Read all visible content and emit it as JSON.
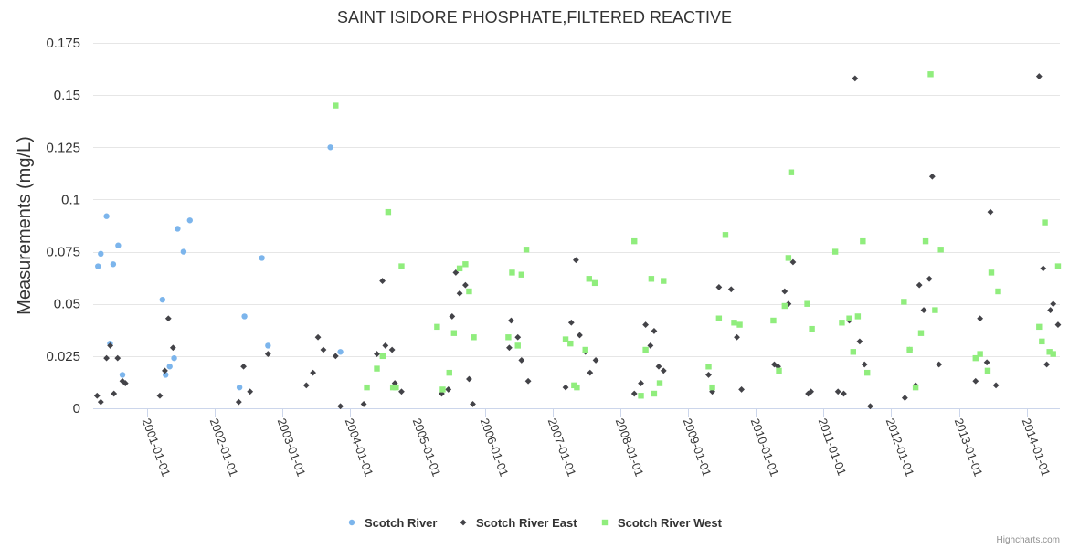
{
  "chart_data": {
    "type": "scatter",
    "title": "SAINT ISIDORE PHOSPHATE,FILTERED REACTIVE",
    "ylabel": "Measurements (mg/L)",
    "xlabel": "",
    "x_axis_type": "datetime",
    "xlim": [
      "2000-03-15",
      "2014-06-30"
    ],
    "ylim": [
      0,
      0.175
    ],
    "yticks": [
      {
        "value": 0,
        "label": "0"
      },
      {
        "value": 0.025,
        "label": "0.025"
      },
      {
        "value": 0.05,
        "label": "0.05"
      },
      {
        "value": 0.075,
        "label": "0.075"
      },
      {
        "value": 0.1,
        "label": "0.1"
      },
      {
        "value": 0.125,
        "label": "0.125"
      },
      {
        "value": 0.15,
        "label": "0.15"
      },
      {
        "value": 0.175,
        "label": "0.175"
      }
    ],
    "xticks": [
      "2001-01-01",
      "2002-01-01",
      "2003-01-01",
      "2004-01-01",
      "2005-01-01",
      "2006-01-01",
      "2007-01-01",
      "2008-01-01",
      "2009-01-01",
      "2010-01-01",
      "2011-01-01",
      "2012-01-01",
      "2013-01-01",
      "2014-01-01"
    ],
    "grid": true,
    "legend_position": "bottom-center",
    "series": [
      {
        "name": "Scotch River",
        "color": "#7cb5ec",
        "marker": "circle",
        "points": [
          [
            "2000-04-10",
            0.068
          ],
          [
            "2000-04-25",
            0.074
          ],
          [
            "2000-05-26",
            0.092
          ],
          [
            "2000-06-14",
            0.031
          ],
          [
            "2000-07-01",
            0.069
          ],
          [
            "2000-07-28",
            0.078
          ],
          [
            "2000-08-20",
            0.016
          ],
          [
            "2001-03-24",
            0.052
          ],
          [
            "2001-04-10",
            0.016
          ],
          [
            "2001-05-02",
            0.02
          ],
          [
            "2001-05-26",
            0.024
          ],
          [
            "2001-06-14",
            0.086
          ],
          [
            "2001-07-16",
            0.075
          ],
          [
            "2001-08-19",
            0.09
          ],
          [
            "2002-05-14",
            0.01
          ],
          [
            "2002-06-10",
            0.044
          ],
          [
            "2002-09-12",
            0.072
          ],
          [
            "2002-10-15",
            0.03
          ],
          [
            "2003-09-17",
            0.125
          ],
          [
            "2003-11-10",
            0.027
          ]
        ]
      },
      {
        "name": "Scotch River East",
        "color": "#434348",
        "marker": "diamond",
        "points": [
          [
            "2000-04-05",
            0.006
          ],
          [
            "2000-04-25",
            0.003
          ],
          [
            "2000-05-26",
            0.024
          ],
          [
            "2000-06-15",
            0.03
          ],
          [
            "2000-07-05",
            0.007
          ],
          [
            "2000-07-25",
            0.024
          ],
          [
            "2000-08-20",
            0.013
          ],
          [
            "2000-09-05",
            0.012
          ],
          [
            "2001-03-10",
            0.006
          ],
          [
            "2001-04-06",
            0.018
          ],
          [
            "2001-04-25",
            0.043
          ],
          [
            "2001-05-20",
            0.029
          ],
          [
            "2002-05-10",
            0.003
          ],
          [
            "2002-06-05",
            0.02
          ],
          [
            "2002-07-10",
            0.008
          ],
          [
            "2002-10-15",
            0.026
          ],
          [
            "2003-05-10",
            0.011
          ],
          [
            "2003-06-15",
            0.017
          ],
          [
            "2003-07-12",
            0.034
          ],
          [
            "2003-08-10",
            0.028
          ],
          [
            "2003-10-15",
            0.025
          ],
          [
            "2003-11-10",
            0.001
          ],
          [
            "2004-03-15",
            0.002
          ],
          [
            "2004-05-25",
            0.026
          ],
          [
            "2004-06-24",
            0.061
          ],
          [
            "2004-07-10",
            0.03
          ],
          [
            "2004-08-15",
            0.028
          ],
          [
            "2004-08-30",
            0.012
          ],
          [
            "2004-10-05",
            0.008
          ],
          [
            "2005-05-10",
            0.007
          ],
          [
            "2005-06-15",
            0.009
          ],
          [
            "2005-07-05",
            0.044
          ],
          [
            "2005-07-25",
            0.065
          ],
          [
            "2005-08-15",
            0.055
          ],
          [
            "2005-09-15",
            0.059
          ],
          [
            "2005-10-05",
            0.014
          ],
          [
            "2005-10-25",
            0.002
          ],
          [
            "2006-05-10",
            0.029
          ],
          [
            "2006-05-20",
            0.042
          ],
          [
            "2006-06-25",
            0.034
          ],
          [
            "2006-07-15",
            0.023
          ],
          [
            "2006-08-20",
            0.013
          ],
          [
            "2007-03-10",
            0.01
          ],
          [
            "2007-04-10",
            0.041
          ],
          [
            "2007-05-05",
            0.071
          ],
          [
            "2007-05-25",
            0.035
          ],
          [
            "2007-06-25",
            0.027
          ],
          [
            "2007-07-20",
            0.017
          ],
          [
            "2007-08-20",
            0.023
          ],
          [
            "2008-03-15",
            0.007
          ],
          [
            "2008-04-20",
            0.012
          ],
          [
            "2008-05-15",
            0.04
          ],
          [
            "2008-06-10",
            0.03
          ],
          [
            "2008-06-30",
            0.037
          ],
          [
            "2008-07-25",
            0.02
          ],
          [
            "2008-08-20",
            0.018
          ],
          [
            "2009-04-20",
            0.016
          ],
          [
            "2009-05-10",
            0.008
          ],
          [
            "2009-06-15",
            0.058
          ],
          [
            "2009-08-20",
            0.057
          ],
          [
            "2009-09-20",
            0.034
          ],
          [
            "2009-10-15",
            0.009
          ],
          [
            "2010-04-10",
            0.021
          ],
          [
            "2010-04-30",
            0.02
          ],
          [
            "2010-06-05",
            0.056
          ],
          [
            "2010-06-25",
            0.05
          ],
          [
            "2010-07-20",
            0.07
          ],
          [
            "2010-10-10",
            0.007
          ],
          [
            "2010-10-25",
            0.008
          ],
          [
            "2011-03-20",
            0.008
          ],
          [
            "2011-04-20",
            0.007
          ],
          [
            "2011-05-20",
            0.042
          ],
          [
            "2011-06-20",
            0.158
          ],
          [
            "2011-07-15",
            0.032
          ],
          [
            "2011-08-10",
            0.021
          ],
          [
            "2011-09-10",
            0.001
          ],
          [
            "2012-03-15",
            0.005
          ],
          [
            "2012-04-10",
            0.028
          ],
          [
            "2012-05-12",
            0.011
          ],
          [
            "2012-06-01",
            0.059
          ],
          [
            "2012-06-25",
            0.047
          ],
          [
            "2012-07-25",
            0.062
          ],
          [
            "2012-08-10",
            0.111
          ],
          [
            "2012-09-15",
            0.021
          ],
          [
            "2013-04-01",
            0.013
          ],
          [
            "2013-04-25",
            0.043
          ],
          [
            "2013-06-01",
            0.022
          ],
          [
            "2013-06-20",
            0.094
          ],
          [
            "2013-07-20",
            0.011
          ],
          [
            "2014-03-10",
            0.159
          ],
          [
            "2014-04-01",
            0.067
          ],
          [
            "2014-04-20",
            0.021
          ],
          [
            "2014-05-10",
            0.047
          ],
          [
            "2014-05-25",
            0.05
          ],
          [
            "2014-06-20",
            0.04
          ]
        ]
      },
      {
        "name": "Scotch River West",
        "color": "#90ed7d",
        "marker": "square",
        "points": [
          [
            "2003-10-15",
            0.145
          ],
          [
            "2004-04-01",
            0.01
          ],
          [
            "2004-05-25",
            0.019
          ],
          [
            "2004-06-25",
            0.025
          ],
          [
            "2004-07-25",
            0.094
          ],
          [
            "2004-08-20",
            0.01
          ],
          [
            "2004-09-05",
            0.01
          ],
          [
            "2004-10-05",
            0.068
          ],
          [
            "2005-04-15",
            0.039
          ],
          [
            "2005-05-15",
            0.009
          ],
          [
            "2005-06-20",
            0.017
          ],
          [
            "2005-07-15",
            0.036
          ],
          [
            "2005-08-15",
            0.067
          ],
          [
            "2005-09-15",
            0.069
          ],
          [
            "2005-10-05",
            0.056
          ],
          [
            "2005-10-30",
            0.034
          ],
          [
            "2006-05-05",
            0.034
          ],
          [
            "2006-05-25",
            0.065
          ],
          [
            "2006-06-25",
            0.03
          ],
          [
            "2006-07-15",
            0.064
          ],
          [
            "2006-08-10",
            0.076
          ],
          [
            "2007-03-10",
            0.033
          ],
          [
            "2007-04-05",
            0.031
          ],
          [
            "2007-04-25",
            0.011
          ],
          [
            "2007-05-10",
            0.01
          ],
          [
            "2007-06-25",
            0.028
          ],
          [
            "2007-07-15",
            0.062
          ],
          [
            "2007-08-15",
            0.06
          ],
          [
            "2008-03-15",
            0.08
          ],
          [
            "2008-04-20",
            0.006
          ],
          [
            "2008-05-15",
            0.028
          ],
          [
            "2008-06-15",
            0.062
          ],
          [
            "2008-06-30",
            0.007
          ],
          [
            "2008-07-30",
            0.012
          ],
          [
            "2008-08-20",
            0.061
          ],
          [
            "2009-04-20",
            0.02
          ],
          [
            "2009-05-10",
            0.01
          ],
          [
            "2009-06-15",
            0.043
          ],
          [
            "2009-07-20",
            0.083
          ],
          [
            "2009-09-05",
            0.041
          ],
          [
            "2009-10-05",
            0.04
          ],
          [
            "2010-04-05",
            0.042
          ],
          [
            "2010-05-05",
            0.018
          ],
          [
            "2010-06-05",
            0.049
          ],
          [
            "2010-06-25",
            0.072
          ],
          [
            "2010-07-10",
            0.113
          ],
          [
            "2010-10-05",
            0.05
          ],
          [
            "2010-10-30",
            0.038
          ],
          [
            "2011-03-05",
            0.075
          ],
          [
            "2011-04-10",
            0.041
          ],
          [
            "2011-05-20",
            0.043
          ],
          [
            "2011-06-10",
            0.027
          ],
          [
            "2011-07-05",
            0.044
          ],
          [
            "2011-08-01",
            0.08
          ],
          [
            "2011-08-25",
            0.017
          ],
          [
            "2012-03-10",
            0.051
          ],
          [
            "2012-04-10",
            0.028
          ],
          [
            "2012-05-12",
            0.01
          ],
          [
            "2012-06-10",
            0.036
          ],
          [
            "2012-07-05",
            0.08
          ],
          [
            "2012-08-01",
            0.16
          ],
          [
            "2012-08-25",
            0.047
          ],
          [
            "2012-09-25",
            0.076
          ],
          [
            "2013-04-01",
            0.024
          ],
          [
            "2013-04-25",
            0.026
          ],
          [
            "2013-06-05",
            0.018
          ],
          [
            "2013-06-25",
            0.065
          ],
          [
            "2013-08-01",
            0.056
          ],
          [
            "2014-03-10",
            0.039
          ],
          [
            "2014-03-25",
            0.032
          ],
          [
            "2014-04-10",
            0.089
          ],
          [
            "2014-05-05",
            0.027
          ],
          [
            "2014-05-25",
            0.026
          ],
          [
            "2014-06-20",
            0.068
          ]
        ]
      }
    ]
  },
  "credits": "Highcharts.com"
}
